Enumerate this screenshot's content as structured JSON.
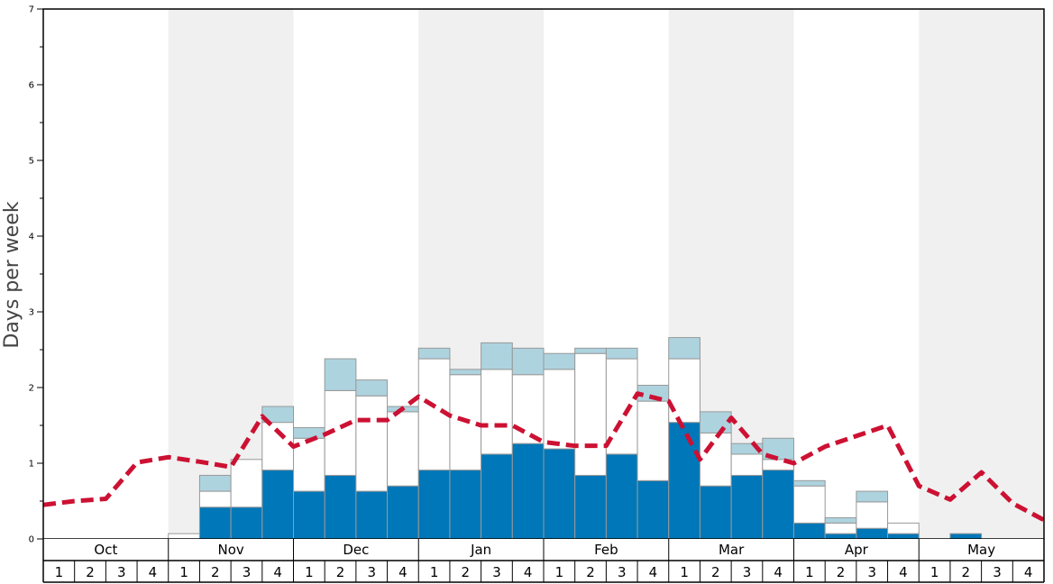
{
  "chart_data": {
    "type": "bar",
    "title": "",
    "xlabel": "",
    "ylabel": "Days per week",
    "ylim": [
      0,
      7
    ],
    "yticks": [
      0,
      1,
      2,
      3,
      4,
      5,
      6,
      7
    ],
    "months": [
      "Oct",
      "Nov",
      "Dec",
      "Jan",
      "Feb",
      "Mar",
      "Apr",
      "May"
    ],
    "week_labels": [
      "1",
      "2",
      "3",
      "4"
    ],
    "shaded_months": [
      "Nov",
      "Jan",
      "Mar",
      "May"
    ],
    "colors": {
      "dark": "#0077b8",
      "white": "#ffffff",
      "light": "#add3df",
      "line": "#cc1133",
      "shade": "#f0f0f0",
      "grid": "#999999"
    },
    "series": [
      {
        "name": "dark",
        "values": [
          0,
          0,
          0,
          0,
          0,
          0.42,
          0.42,
          0.91,
          0.63,
          0.84,
          0.63,
          0.7,
          0.91,
          0.91,
          1.12,
          1.26,
          1.19,
          0.84,
          1.12,
          0.77,
          1.54,
          0.7,
          0.84,
          0.91,
          0.21,
          0.07,
          0.14,
          0.07,
          0,
          0.07,
          0,
          0
        ]
      },
      {
        "name": "white",
        "values": [
          0,
          0,
          0,
          0,
          0.07,
          0.21,
          0.63,
          0.63,
          0.7,
          1.12,
          1.26,
          0.98,
          1.47,
          1.26,
          1.12,
          0.91,
          1.05,
          1.61,
          1.26,
          1.05,
          0.84,
          0.7,
          0.28,
          0.14,
          0.49,
          0.14,
          0.35,
          0.14,
          0,
          0,
          0,
          0
        ]
      },
      {
        "name": "light",
        "values": [
          0,
          0,
          0,
          0,
          0,
          0.21,
          0,
          0.21,
          0.14,
          0.42,
          0.21,
          0.07,
          0.14,
          0.07,
          0.35,
          0.35,
          0.21,
          0.07,
          0.14,
          0.21,
          0.28,
          0.28,
          0.14,
          0.28,
          0.07,
          0.07,
          0.14,
          0,
          0,
          0,
          0,
          0
        ]
      }
    ],
    "average_line": [
      0.45,
      0.5,
      0.53,
      1.01,
      1.08,
      1.02,
      0.95,
      1.62,
      1.22,
      1.38,
      1.57,
      1.57,
      1.88,
      1.63,
      1.5,
      1.5,
      1.28,
      1.23,
      1.23,
      1.92,
      1.82,
      1.05,
      1.6,
      1.12,
      1.0,
      1.22,
      1.36,
      1.5,
      0.7,
      0.52,
      0.88,
      0.47,
      0.25
    ]
  }
}
